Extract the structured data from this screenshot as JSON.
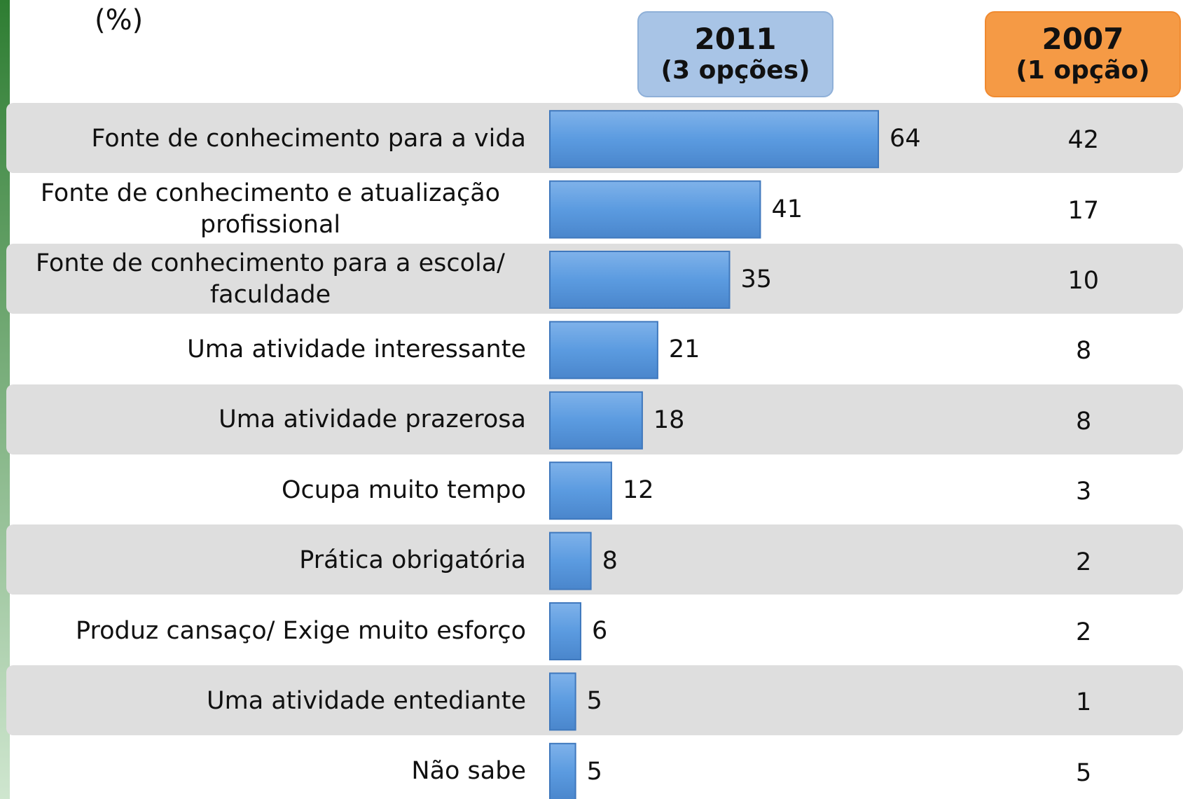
{
  "chart_data": {
    "type": "bar",
    "unit_label": "(%)",
    "categories": [
      "Fonte de conhecimento para a vida",
      "Fonte de conhecimento e atualização profissional",
      "Fonte de conhecimento para a escola/ faculdade",
      "Uma atividade interessante",
      "Uma atividade prazerosa",
      "Ocupa muito tempo",
      "Prática obrigatória",
      "Produz cansaço/ Exige muito esforço",
      "Uma atividade entediante",
      "Não sabe"
    ],
    "series": [
      {
        "name": "2011",
        "note": "(3 opções)",
        "color": "#5b9be0",
        "values": [
          64,
          41,
          35,
          21,
          18,
          12,
          8,
          6,
          5,
          5
        ]
      },
      {
        "name": "2007",
        "note": "(1 opção)",
        "color": "#f59a45",
        "values": [
          42,
          17,
          10,
          8,
          8,
          3,
          2,
          2,
          1,
          5
        ]
      }
    ]
  }
}
